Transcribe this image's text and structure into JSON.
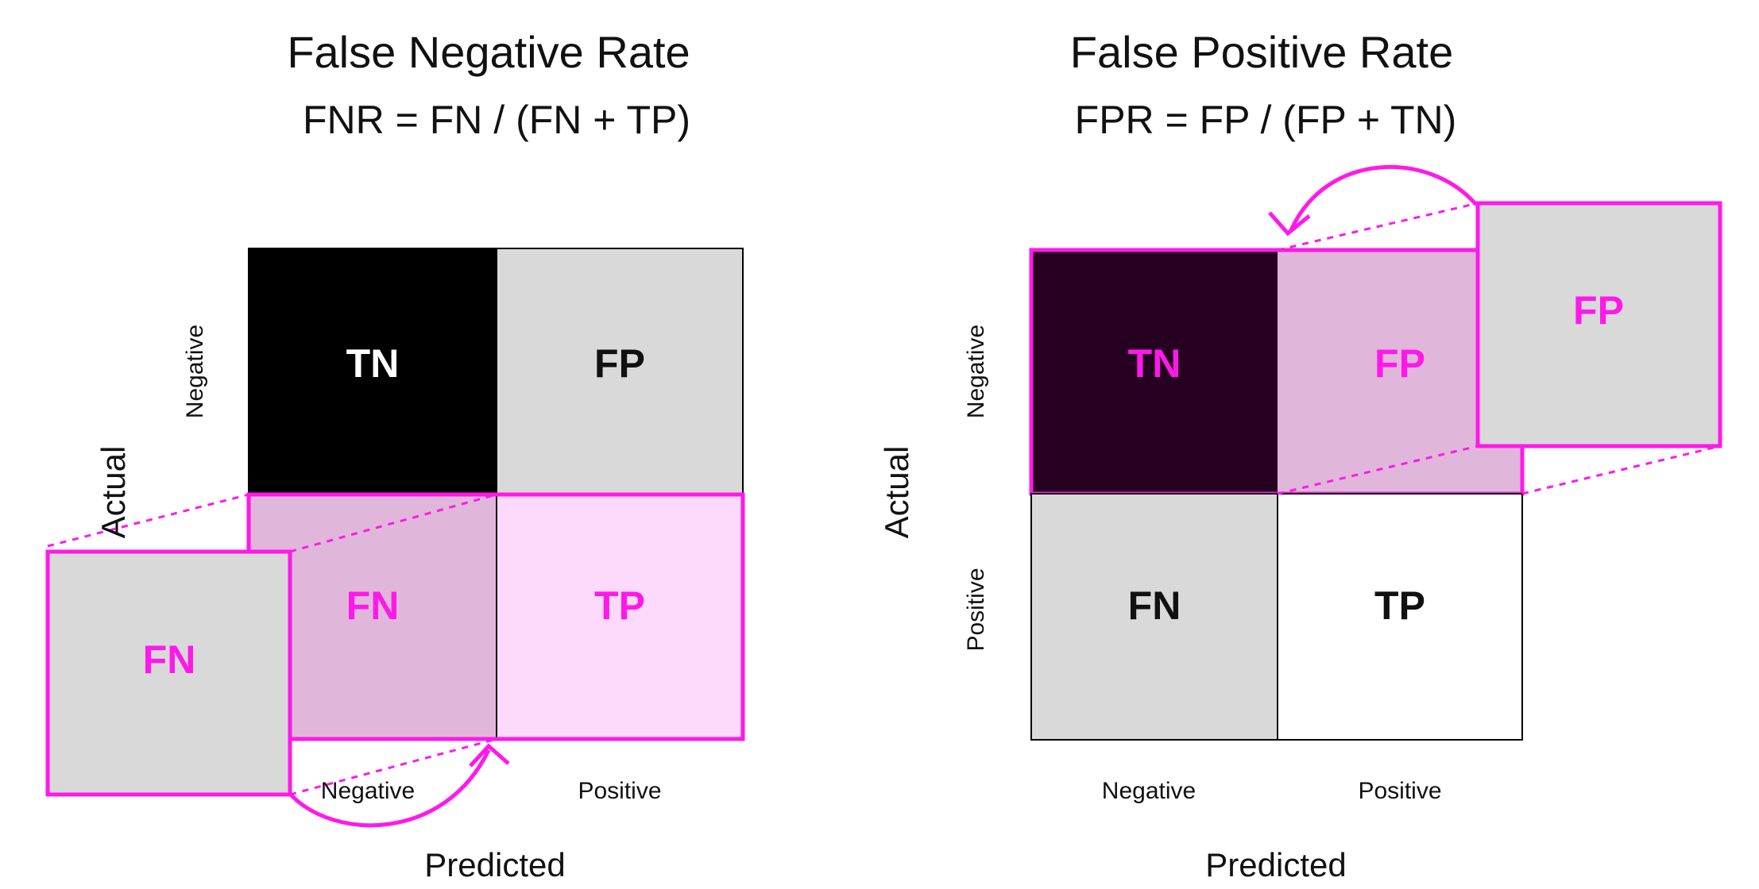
{
  "colors": {
    "magenta": "#ff19e9",
    "black": "#000000",
    "gray": "#d9d9d9",
    "pink_muted": "#e0b7da",
    "pink_light": "#fdd9fb",
    "dark_plum": "#260020",
    "white": "#ffffff",
    "text": "#111111"
  },
  "left": {
    "title": "False Negative Rate",
    "formula": "FNR = FN / (FN + TP)",
    "cells": {
      "tn": "TN",
      "fp": "FP",
      "fn": "FN",
      "tp": "TP",
      "fn_moved": "FN"
    },
    "row_labels": {
      "negative": "Negative"
    },
    "col_labels": {
      "negative": "Negative",
      "positive": "Positive"
    },
    "ylabel": "Actual",
    "xlabel": "Predicted"
  },
  "right": {
    "title": "False Positive Rate",
    "formula": "FPR = FP / (FP + TN)",
    "cells": {
      "tn": "TN",
      "fp": "FP",
      "fn": "FN",
      "tp": "TP",
      "fp_moved": "FP"
    },
    "row_labels": {
      "negative": "Negative",
      "positive": "Positive"
    },
    "col_labels": {
      "negative": "Negative",
      "positive": "Positive"
    },
    "ylabel": "Actual",
    "xlabel": "Predicted"
  }
}
